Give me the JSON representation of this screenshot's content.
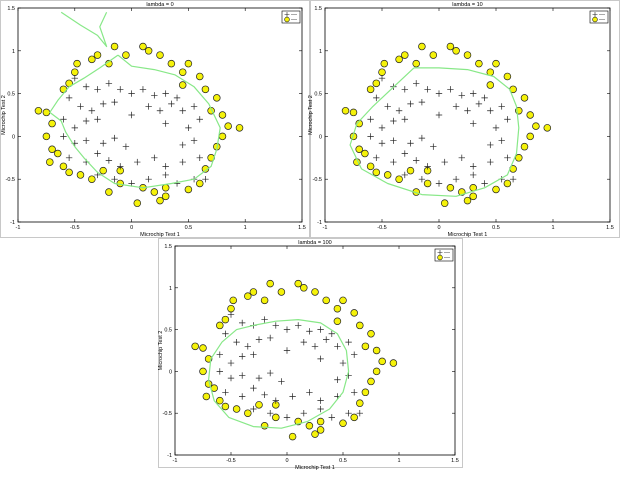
{
  "chart_data": [
    {
      "type": "scatter",
      "title": "lambda = 0",
      "xlabel": "Microchip Test 1",
      "ylabel": "Microchip Test 2",
      "xlim": [
        -1,
        1.5
      ],
      "ylim": [
        -1,
        1.5
      ],
      "xticks": [
        "-1",
        "-0.5",
        "0",
        "0.5",
        "1",
        "1.5"
      ],
      "yticks": [
        "-1",
        "-0.5",
        "0",
        "0.5",
        "1",
        "1.5"
      ],
      "legend": "top-right"
    },
    {
      "type": "scatter",
      "title": "lambda = 10",
      "xlabel": "Microchip Test 1",
      "ylabel": "Microchip Test 2",
      "xlim": [
        -1,
        1.5
      ],
      "ylim": [
        -1,
        1.5
      ],
      "xticks": [
        "-1",
        "-0.5",
        "0",
        "0.5",
        "1",
        "1.5"
      ],
      "yticks": [
        "-1",
        "-0.5",
        "0",
        "0.5",
        "1",
        "1.5"
      ],
      "legend": "top-right"
    },
    {
      "type": "scatter",
      "title": "lambda = 100",
      "xlabel": "Microchip Test 1",
      "ylabel": "Microchip Test 2",
      "xlim": [
        -1,
        1.5
      ],
      "ylim": [
        -1,
        1.5
      ],
      "xticks": [
        "-1",
        "-0.5",
        "0",
        "0.5",
        "1",
        "1.5"
      ],
      "yticks": [
        "-1",
        "-0.5",
        "0",
        "0.5",
        "1",
        "1.5"
      ],
      "legend": "top-right"
    }
  ],
  "accepted": [
    [
      -0.5,
      0.68
    ],
    [
      -0.4,
      0.58
    ],
    [
      -0.3,
      0.55
    ],
    [
      -0.2,
      0.62
    ],
    [
      -0.1,
      0.55
    ],
    [
      0.0,
      0.5
    ],
    [
      0.1,
      0.55
    ],
    [
      0.2,
      0.48
    ],
    [
      0.3,
      0.5
    ],
    [
      0.4,
      0.45
    ],
    [
      -0.55,
      0.45
    ],
    [
      -0.45,
      0.35
    ],
    [
      -0.35,
      0.3
    ],
    [
      -0.25,
      0.38
    ],
    [
      -0.15,
      0.4
    ],
    [
      0.15,
      0.35
    ],
    [
      0.25,
      0.3
    ],
    [
      0.35,
      0.38
    ],
    [
      0.45,
      0.3
    ],
    [
      0.55,
      0.35
    ],
    [
      -0.6,
      0.2
    ],
    [
      -0.5,
      0.1
    ],
    [
      -0.4,
      0.18
    ],
    [
      -0.3,
      0.2
    ],
    [
      0.0,
      0.25
    ],
    [
      0.3,
      0.15
    ],
    [
      0.5,
      0.1
    ],
    [
      0.6,
      0.2
    ],
    [
      -0.6,
      0.0
    ],
    [
      -0.5,
      -0.08
    ],
    [
      -0.4,
      -0.05
    ],
    [
      -0.25,
      -0.08
    ],
    [
      -0.15,
      -0.02
    ],
    [
      0.45,
      -0.1
    ],
    [
      0.55,
      -0.05
    ],
    [
      -0.55,
      -0.25
    ],
    [
      -0.4,
      -0.3
    ],
    [
      -0.3,
      -0.2
    ],
    [
      -0.2,
      -0.28
    ],
    [
      -0.1,
      -0.35
    ],
    [
      0.05,
      -0.3
    ],
    [
      0.2,
      -0.25
    ],
    [
      0.3,
      -0.35
    ],
    [
      0.45,
      -0.3
    ],
    [
      0.6,
      -0.25
    ],
    [
      -0.3,
      -0.45
    ],
    [
      -0.15,
      -0.5
    ],
    [
      0.0,
      -0.55
    ],
    [
      0.15,
      -0.5
    ],
    [
      0.3,
      -0.45
    ],
    [
      0.4,
      -0.55
    ],
    [
      0.55,
      -0.5
    ],
    [
      0.65,
      -0.5
    ],
    [
      -0.05,
      -0.12
    ]
  ],
  "rejected": [
    [
      -0.82,
      0.3
    ],
    [
      -0.75,
      0.28
    ],
    [
      -0.7,
      0.15
    ],
    [
      -0.75,
      0.0
    ],
    [
      -0.7,
      -0.15
    ],
    [
      -0.72,
      -0.3
    ],
    [
      -0.6,
      -0.35
    ],
    [
      -0.65,
      -0.2
    ],
    [
      -0.6,
      0.55
    ],
    [
      -0.55,
      0.62
    ],
    [
      -0.5,
      0.75
    ],
    [
      -0.48,
      0.85
    ],
    [
      -0.35,
      0.9
    ],
    [
      -0.3,
      0.95
    ],
    [
      -0.15,
      1.05
    ],
    [
      -0.05,
      0.95
    ],
    [
      0.1,
      1.05
    ],
    [
      0.15,
      1.0
    ],
    [
      0.25,
      0.95
    ],
    [
      0.35,
      0.85
    ],
    [
      0.45,
      0.75
    ],
    [
      0.5,
      0.85
    ],
    [
      0.6,
      0.7
    ],
    [
      0.65,
      0.55
    ],
    [
      0.75,
      0.45
    ],
    [
      0.7,
      0.3
    ],
    [
      0.8,
      0.25
    ],
    [
      0.85,
      0.12
    ],
    [
      0.95,
      0.1
    ],
    [
      0.8,
      0.0
    ],
    [
      0.75,
      -0.12
    ],
    [
      0.7,
      -0.25
    ],
    [
      0.65,
      -0.38
    ],
    [
      0.6,
      -0.55
    ],
    [
      0.5,
      -0.62
    ],
    [
      0.3,
      -0.6
    ],
    [
      0.2,
      -0.65
    ],
    [
      0.1,
      -0.6
    ],
    [
      -0.1,
      -0.55
    ],
    [
      -0.2,
      -0.65
    ],
    [
      -0.35,
      -0.5
    ],
    [
      -0.25,
      -0.4
    ],
    [
      -0.45,
      -0.45
    ],
    [
      -0.55,
      -0.42
    ],
    [
      0.25,
      -0.75
    ],
    [
      0.05,
      -0.78
    ],
    [
      0.3,
      -0.7
    ],
    [
      -0.1,
      -0.4
    ],
    [
      0.45,
      0.6
    ],
    [
      -0.2,
      0.85
    ]
  ],
  "boundaries": [
    [
      [
        -0.62,
        1.45
      ],
      [
        -0.45,
        1.3
      ],
      [
        -0.3,
        1.18
      ],
      [
        -0.22,
        1.05
      ],
      [
        -0.28,
        1.28
      ],
      [
        -0.22,
        1.45
      ],
      null,
      [
        -0.12,
        0.95
      ],
      [
        0.0,
        0.82
      ],
      [
        0.2,
        0.78
      ],
      [
        0.38,
        0.72
      ],
      [
        0.55,
        0.58
      ],
      [
        0.68,
        0.38
      ],
      [
        0.78,
        0.1
      ],
      [
        0.75,
        -0.15
      ],
      [
        0.7,
        -0.35
      ],
      [
        0.55,
        -0.5
      ],
      [
        0.35,
        -0.55
      ],
      [
        0.1,
        -0.6
      ],
      [
        -0.15,
        -0.55
      ],
      [
        -0.3,
        -0.42
      ],
      [
        -0.42,
        -0.25
      ],
      [
        -0.5,
        -0.12
      ],
      [
        -0.58,
        0.05
      ],
      [
        -0.62,
        0.18
      ],
      [
        -0.72,
        0.28
      ],
      [
        -0.65,
        0.42
      ],
      [
        -0.55,
        0.58
      ],
      [
        -0.42,
        0.68
      ],
      [
        -0.28,
        0.8
      ],
      [
        -0.12,
        0.95
      ]
    ],
    [
      [
        -0.22,
        0.8
      ],
      [
        0.0,
        0.8
      ],
      [
        0.25,
        0.78
      ],
      [
        0.48,
        0.7
      ],
      [
        0.62,
        0.55
      ],
      [
        0.68,
        0.35
      ],
      [
        0.7,
        0.1
      ],
      [
        0.68,
        -0.2
      ],
      [
        0.6,
        -0.45
      ],
      [
        0.4,
        -0.6
      ],
      [
        0.15,
        -0.7
      ],
      [
        -0.15,
        -0.68
      ],
      [
        -0.45,
        -0.55
      ],
      [
        -0.68,
        -0.38
      ],
      [
        -0.78,
        -0.1
      ],
      [
        -0.72,
        0.15
      ],
      [
        -0.58,
        0.35
      ],
      [
        -0.42,
        0.55
      ],
      [
        -0.22,
        0.8
      ]
    ],
    [
      [
        -0.3,
        0.55
      ],
      [
        -0.1,
        0.6
      ],
      [
        0.1,
        0.62
      ],
      [
        0.3,
        0.58
      ],
      [
        0.45,
        0.45
      ],
      [
        0.53,
        0.25
      ],
      [
        0.55,
        0.0
      ],
      [
        0.5,
        -0.25
      ],
      [
        0.38,
        -0.45
      ],
      [
        0.18,
        -0.6
      ],
      [
        -0.05,
        -0.68
      ],
      [
        -0.3,
        -0.66
      ],
      [
        -0.52,
        -0.55
      ],
      [
        -0.65,
        -0.35
      ],
      [
        -0.7,
        -0.1
      ],
      [
        -0.68,
        0.15
      ],
      [
        -0.58,
        0.35
      ],
      [
        -0.45,
        0.5
      ],
      [
        -0.3,
        0.55
      ]
    ]
  ],
  "colors": {
    "boundary": "#88e888",
    "rejected_fill": "#f5f20a",
    "rejected_stroke": "#222222",
    "accepted": "#222222",
    "frame": "#000000"
  }
}
